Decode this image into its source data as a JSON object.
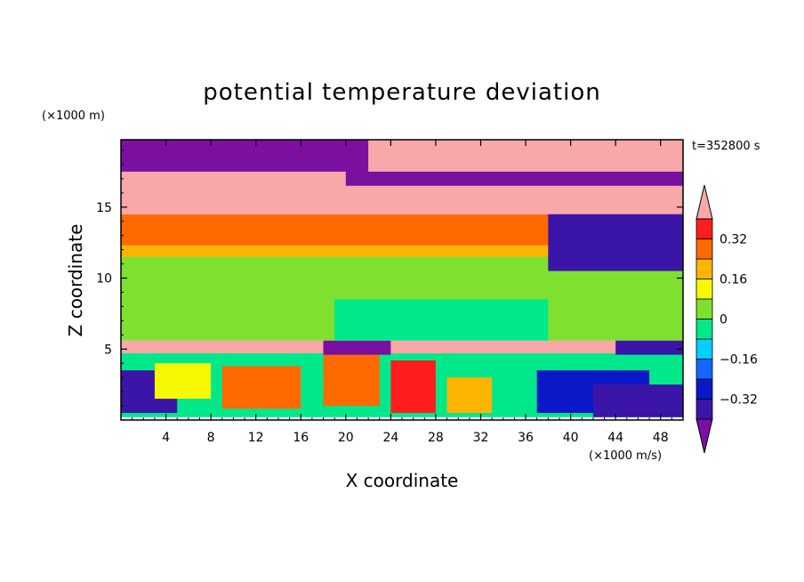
{
  "chart_data": {
    "type": "heatmap",
    "title": "potential temperature deviation",
    "xlabel": "X coordinate",
    "ylabel": "Z coordinate",
    "x_units": "(×1000 m/s)",
    "y_units": "(×1000 m)",
    "time_label": "t=352800 s",
    "xlim": [
      0,
      50
    ],
    "ylim": [
      0,
      19.75
    ],
    "x_ticks": [
      4,
      8,
      12,
      16,
      20,
      24,
      28,
      32,
      36,
      40,
      44,
      48
    ],
    "y_ticks": [
      5,
      10,
      15
    ],
    "colorbar": {
      "levels": [
        -0.4,
        -0.32,
        -0.24,
        -0.16,
        -0.08,
        0,
        0.08,
        0.16,
        0.24,
        0.32,
        0.4
      ],
      "tick_values": [
        0.32,
        0.16,
        0,
        -0.16,
        -0.32
      ],
      "tick_labels": [
        "0.32",
        "0.16",
        "0",
        "−0.16",
        "−0.32"
      ],
      "colors": [
        "#7a0fa0",
        "#3b14a8",
        "#0a18c8",
        "#1466ff",
        "#00d0ff",
        "#00e88a",
        "#7fe030",
        "#f8f800",
        "#ffb400",
        "#ff6a00",
        "#ff1e1e",
        "#f8a8a8"
      ],
      "extend": "both"
    },
    "regions": [
      {
        "x": [
          0,
          50
        ],
        "z": [
          0.2,
          4.7
        ],
        "value": -0.05
      },
      {
        "x": [
          0,
          5
        ],
        "z": [
          0.5,
          3.5
        ],
        "value": -0.35
      },
      {
        "x": [
          3,
          8
        ],
        "z": [
          1.5,
          4
        ],
        "value": 0.12
      },
      {
        "x": [
          9,
          16
        ],
        "z": [
          0.8,
          3.8
        ],
        "value": 0.28
      },
      {
        "x": [
          18,
          23
        ],
        "z": [
          1,
          4.6
        ],
        "value": 0.3
      },
      {
        "x": [
          24,
          28
        ],
        "z": [
          0.5,
          4.2
        ],
        "value": 0.36
      },
      {
        "x": [
          29,
          33
        ],
        "z": [
          0.5,
          3
        ],
        "value": 0.22
      },
      {
        "x": [
          37,
          47
        ],
        "z": [
          0.5,
          3.5
        ],
        "value": -0.3
      },
      {
        "x": [
          42,
          50
        ],
        "z": [
          0.2,
          2.5
        ],
        "value": -0.36
      },
      {
        "x": [
          0,
          50
        ],
        "z": [
          4.7,
          5.6
        ],
        "value": 0.42
      },
      {
        "x": [
          18,
          24
        ],
        "z": [
          4.6,
          5.6
        ],
        "value": -0.45
      },
      {
        "x": [
          44,
          50
        ],
        "z": [
          4.6,
          5.6
        ],
        "value": -0.4
      },
      {
        "x": [
          0,
          50
        ],
        "z": [
          5.6,
          11.5
        ],
        "value": 0.04
      },
      {
        "x": [
          19,
          38
        ],
        "z": [
          5.6,
          8.5
        ],
        "value": -0.04
      },
      {
        "x": [
          0,
          50
        ],
        "z": [
          11.5,
          12.3
        ],
        "value": 0.2
      },
      {
        "x": [
          0,
          50
        ],
        "z": [
          12.3,
          14.5
        ],
        "value": 0.27
      },
      {
        "x": [
          38,
          50
        ],
        "z": [
          10.5,
          15
        ],
        "value": -0.4
      },
      {
        "x": [
          0,
          50
        ],
        "z": [
          14.5,
          16.5
        ],
        "value": 0.42
      },
      {
        "x": [
          0,
          50
        ],
        "z": [
          16.5,
          19.75
        ],
        "value": -0.45
      },
      {
        "x": [
          22,
          50
        ],
        "z": [
          17.5,
          19.75
        ],
        "value": 0.42
      },
      {
        "x": [
          0,
          20
        ],
        "z": [
          15.5,
          17.5
        ],
        "value": 0.42
      }
    ]
  }
}
